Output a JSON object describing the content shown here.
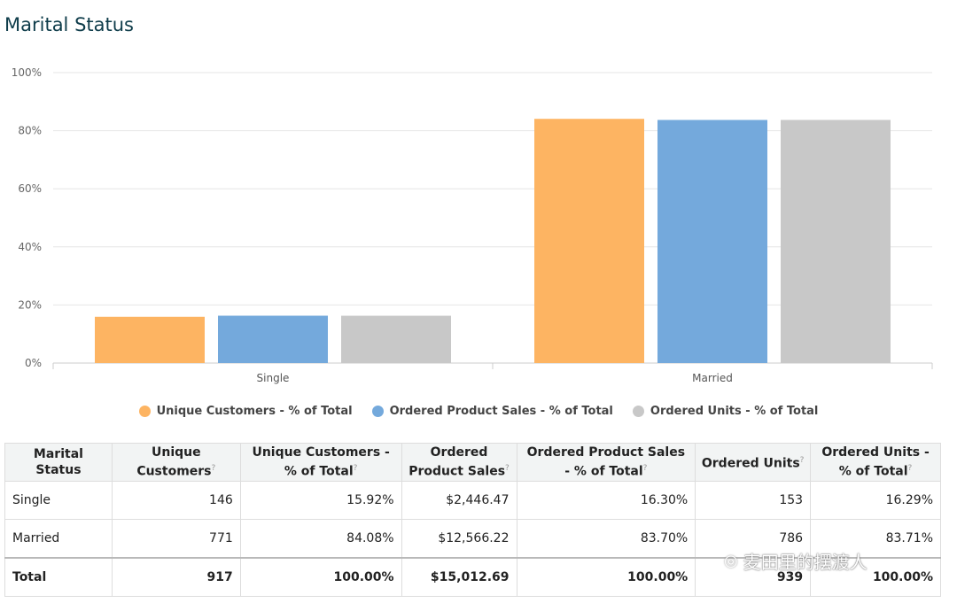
{
  "title": "Marital Status",
  "colors": {
    "orange": "#FDB462",
    "blue": "#74A9DC",
    "gray": "#C8C8C8"
  },
  "chart_data": {
    "type": "bar",
    "categories": [
      "Single",
      "Married"
    ],
    "series": [
      {
        "name": "Unique Customers - % of Total",
        "values": [
          15.92,
          84.08
        ],
        "color": "#FDB462"
      },
      {
        "name": "Ordered Product Sales - % of Total",
        "values": [
          16.3,
          83.7
        ],
        "color": "#74A9DC"
      },
      {
        "name": "Ordered Units - % of Total",
        "values": [
          16.29,
          83.71
        ],
        "color": "#C8C8C8"
      }
    ],
    "yticks": [
      "0%",
      "20%",
      "40%",
      "60%",
      "80%",
      "100%"
    ],
    "ylim": [
      0,
      100
    ],
    "grid": true,
    "legend": "bottom"
  },
  "table": {
    "headers": [
      {
        "label": "Marital Status",
        "help": ""
      },
      {
        "label": "Unique Customers",
        "help": "?"
      },
      {
        "label": "Unique Customers - % of Total",
        "help": "?"
      },
      {
        "label": "Ordered Product Sales",
        "help": "?"
      },
      {
        "label": "Ordered Product Sales - % of Total",
        "help": "?"
      },
      {
        "label": "Ordered Units",
        "help": "?"
      },
      {
        "label": "Ordered Units - % of Total",
        "help": "?"
      }
    ],
    "rows": [
      [
        "Single",
        "146",
        "15.92%",
        "$2,446.47",
        "16.30%",
        "153",
        "16.29%"
      ],
      [
        "Married",
        "771",
        "84.08%",
        "$12,566.22",
        "83.70%",
        "786",
        "83.71%"
      ]
    ],
    "total": [
      "Total",
      "917",
      "100.00%",
      "$15,012.69",
      "100.00%",
      "939",
      "100.00%"
    ]
  },
  "watermark": {
    "text": "麦田里的摆渡人",
    "icon": "wechat-icon"
  }
}
